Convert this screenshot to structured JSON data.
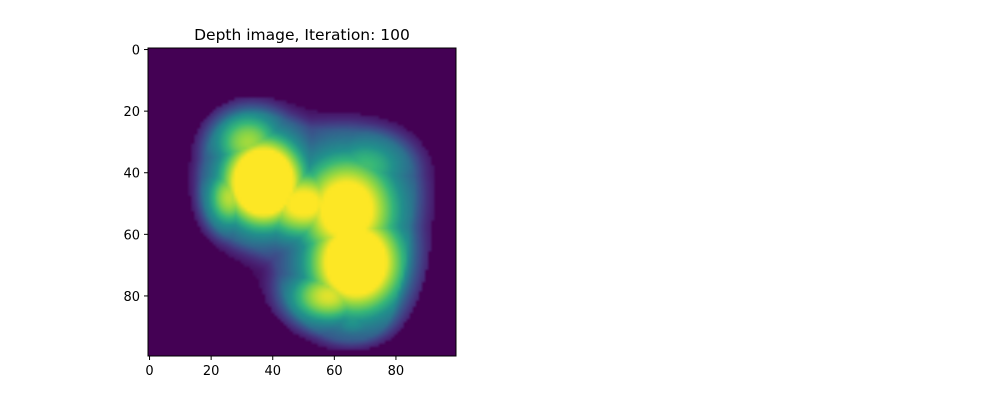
{
  "chart_data": {
    "type": "heatmap",
    "title": "Depth image, Iteration: 100",
    "xlabel": "",
    "ylabel": "",
    "grid": false,
    "colormap": "viridis",
    "background_color": "#440154",
    "image_size": [
      100,
      100
    ],
    "xlim": [
      -0.5,
      99.5
    ],
    "ylim": [
      99.5,
      -0.5
    ],
    "x_ticks": [
      0,
      20,
      40,
      60,
      80
    ],
    "x_tick_labels": [
      "0",
      "20",
      "40",
      "60",
      "80"
    ],
    "y_ticks": [
      0,
      20,
      40,
      60,
      80
    ],
    "y_tick_labels": [
      "0",
      "20",
      "40",
      "60",
      "80"
    ],
    "blobs": [
      {
        "cx": 37,
        "cy": 43,
        "rx": 10,
        "ry": 11,
        "value": 0.98
      },
      {
        "cx": 32,
        "cy": 30,
        "rx": 9,
        "ry": 8,
        "value": 0.55
      },
      {
        "cx": 50,
        "cy": 50,
        "rx": 12,
        "ry": 9,
        "value": 0.7
      },
      {
        "cx": 64,
        "cy": 52,
        "rx": 13,
        "ry": 14,
        "value": 0.78
      },
      {
        "cx": 67,
        "cy": 69,
        "rx": 12,
        "ry": 13,
        "value": 0.88
      },
      {
        "cx": 58,
        "cy": 80,
        "rx": 10,
        "ry": 7,
        "value": 0.62
      },
      {
        "cx": 70,
        "cy": 38,
        "rx": 11,
        "ry": 8,
        "value": 0.42
      },
      {
        "cx": 26,
        "cy": 48,
        "rx": 6,
        "ry": 8,
        "value": 0.58
      },
      {
        "cx": 66,
        "cy": 88,
        "rx": 6,
        "ry": 4,
        "value": 0.3
      }
    ]
  }
}
